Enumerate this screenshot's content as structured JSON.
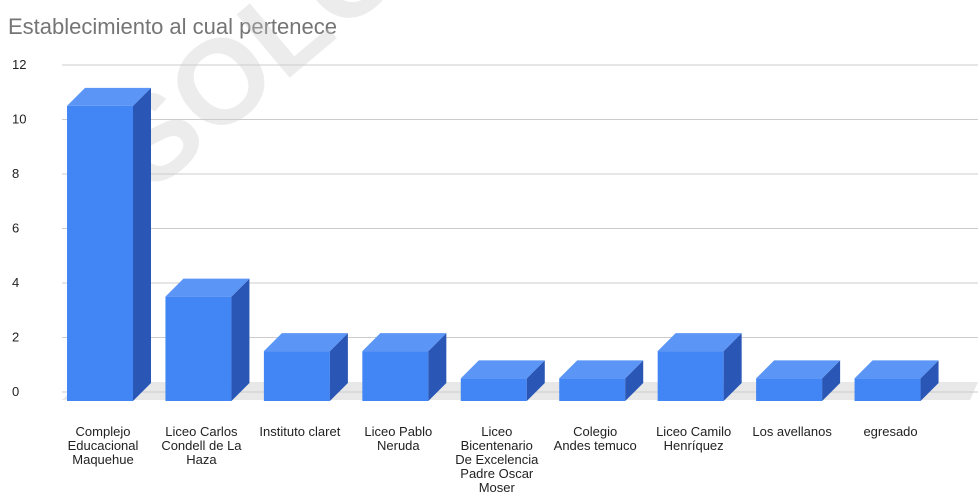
{
  "chart_data": {
    "type": "bar",
    "title": "Establecimiento al cual pertenece",
    "categories": [
      "Complejo Educacional Maquehue",
      "Liceo Carlos Condell de La Haza",
      "Instituto claret",
      "Liceo Pablo Neruda",
      "Liceo Bicentenario De Excelencia Padre Oscar Moser",
      "Colegio Andes temuco",
      "Liceo Camilo Henríquez",
      "Los avellanos",
      "egresado"
    ],
    "category_lines": [
      [
        "Complejo",
        "Educacional",
        "Maquehue"
      ],
      [
        "Liceo Carlos",
        "Condell de La",
        "Haza"
      ],
      [
        "Instituto claret"
      ],
      [
        "Liceo Pablo",
        "Neruda"
      ],
      [
        "Liceo",
        "Bicentenario",
        "De Excelencia",
        "Padre Oscar",
        "Moser"
      ],
      [
        "Colegio",
        "Andes temuco"
      ],
      [
        "Liceo Camilo",
        "Henríquez"
      ],
      [
        "Los avellanos"
      ],
      [
        "egresado"
      ]
    ],
    "values": [
      10,
      3,
      1,
      1,
      0,
      0,
      1,
      0,
      0
    ],
    "ylim": [
      0,
      12
    ],
    "yticks": [
      "0",
      "2",
      "4",
      "6",
      "8",
      "10",
      "12"
    ],
    "grid": true,
    "style": "3d",
    "colors": {
      "front": "#4285f4",
      "top": "#5b95f6",
      "side": "#2a56b5",
      "grid": "#cccccc",
      "floor": "#e8e8e8"
    }
  },
  "watermark": "SOLO USO"
}
